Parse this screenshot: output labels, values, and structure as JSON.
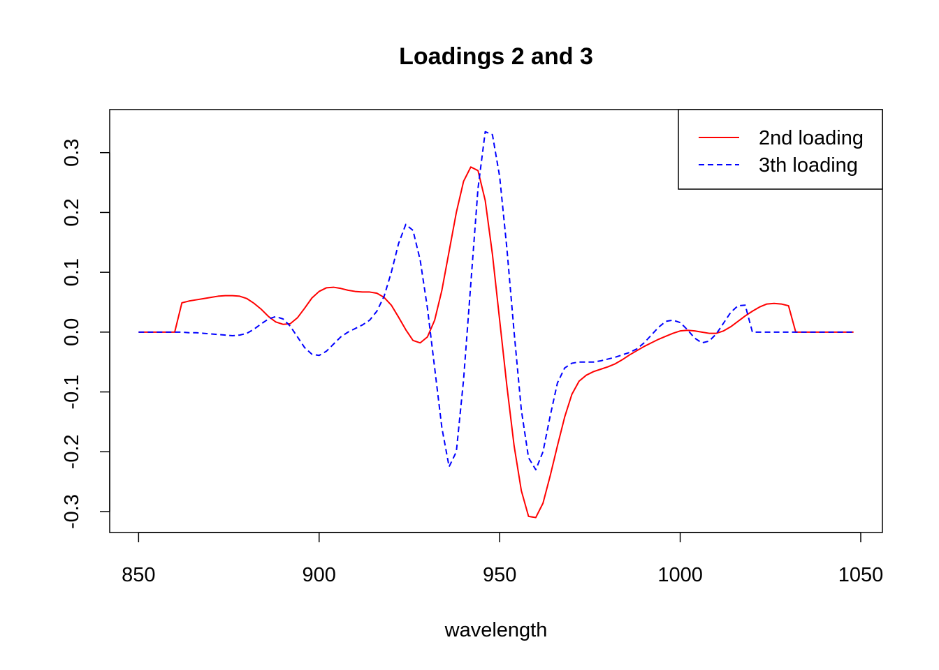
{
  "chart_data": {
    "type": "line",
    "title": "Loadings 2 and 3",
    "xlabel": "wavelength",
    "ylabel": "",
    "xlim": [
      842,
      1056
    ],
    "ylim": [
      -0.335,
      0.372
    ],
    "x_ticks": [
      850,
      900,
      950,
      1000,
      1050
    ],
    "y_ticks": [
      -0.3,
      -0.2,
      -0.1,
      0.0,
      0.1,
      0.2,
      0.3
    ],
    "x_tick_labels": [
      "850",
      "900",
      "950",
      "1000",
      "1050"
    ],
    "y_tick_labels": [
      "-0.3",
      "-0.2",
      "-0.1",
      "0.0",
      "0.1",
      "0.2",
      "0.3"
    ],
    "legend_position": "top-right",
    "series": [
      {
        "name": "2nd loading",
        "color": "#ff0000",
        "style": "solid",
        "x": [
          850,
          852,
          854,
          856,
          858,
          860,
          862,
          864,
          866,
          868,
          870,
          872,
          874,
          876,
          878,
          880,
          882,
          884,
          886,
          888,
          890,
          892,
          894,
          896,
          898,
          900,
          902,
          904,
          906,
          908,
          910,
          912,
          914,
          916,
          918,
          920,
          922,
          924,
          926,
          928,
          930,
          932,
          934,
          936,
          938,
          940,
          942,
          944,
          946,
          948,
          950,
          952,
          954,
          956,
          958,
          960,
          962,
          964,
          966,
          968,
          970,
          972,
          974,
          976,
          978,
          980,
          982,
          984,
          986,
          988,
          990,
          992,
          994,
          996,
          998,
          1000,
          1002,
          1004,
          1006,
          1008,
          1010,
          1012,
          1014,
          1016,
          1018,
          1020,
          1022,
          1024,
          1026,
          1028,
          1030,
          1032,
          1034,
          1036,
          1038,
          1040,
          1042,
          1044,
          1046,
          1048
        ],
        "values": [
          0.0,
          0.0,
          0.0,
          0.0,
          0.0,
          0.0,
          0.049,
          0.052,
          0.054,
          0.056,
          0.058,
          0.06,
          0.061,
          0.061,
          0.06,
          0.056,
          0.048,
          0.038,
          0.026,
          0.017,
          0.013,
          0.014,
          0.024,
          0.04,
          0.057,
          0.068,
          0.074,
          0.075,
          0.073,
          0.07,
          0.068,
          0.067,
          0.067,
          0.065,
          0.058,
          0.045,
          0.025,
          0.004,
          -0.014,
          -0.018,
          -0.008,
          0.02,
          0.07,
          0.135,
          0.2,
          0.252,
          0.276,
          0.27,
          0.22,
          0.13,
          0.02,
          -0.09,
          -0.19,
          -0.265,
          -0.308,
          -0.31,
          -0.286,
          -0.24,
          -0.19,
          -0.142,
          -0.104,
          -0.082,
          -0.072,
          -0.066,
          -0.062,
          -0.058,
          -0.053,
          -0.046,
          -0.038,
          -0.031,
          -0.024,
          -0.018,
          -0.012,
          -0.007,
          -0.002,
          0.002,
          0.003,
          0.002,
          0.0,
          -0.002,
          -0.002,
          0.002,
          0.009,
          0.018,
          0.027,
          0.035,
          0.042,
          0.047,
          0.048,
          0.047,
          0.044,
          0.0,
          0.0,
          0.0,
          0.0,
          0.0,
          0.0,
          0.0,
          0.0,
          0.0
        ]
      },
      {
        "name": "3th loading",
        "color": "#0000ff",
        "style": "dashed",
        "x": [
          850,
          852,
          854,
          856,
          858,
          860,
          862,
          864,
          866,
          868,
          870,
          872,
          874,
          876,
          878,
          880,
          882,
          884,
          886,
          888,
          890,
          892,
          894,
          896,
          898,
          900,
          902,
          904,
          906,
          908,
          910,
          912,
          914,
          916,
          918,
          920,
          922,
          924,
          926,
          928,
          930,
          932,
          934,
          936,
          938,
          940,
          942,
          944,
          946,
          948,
          950,
          952,
          954,
          956,
          958,
          960,
          962,
          964,
          966,
          968,
          970,
          972,
          974,
          976,
          978,
          980,
          982,
          984,
          986,
          988,
          990,
          992,
          994,
          996,
          998,
          1000,
          1002,
          1004,
          1006,
          1008,
          1010,
          1012,
          1014,
          1016,
          1018,
          1020,
          1022,
          1024,
          1026,
          1028,
          1030,
          1032,
          1034,
          1036,
          1038,
          1040,
          1042,
          1044,
          1046,
          1048
        ],
        "values": [
          0.0,
          0.0,
          0.0,
          0.0,
          0.0,
          0.0,
          0.0,
          -0.001,
          -0.001,
          -0.002,
          -0.003,
          -0.004,
          -0.005,
          -0.006,
          -0.005,
          -0.002,
          0.005,
          0.014,
          0.022,
          0.026,
          0.022,
          0.01,
          -0.008,
          -0.026,
          -0.037,
          -0.039,
          -0.032,
          -0.02,
          -0.008,
          0.0,
          0.006,
          0.012,
          0.02,
          0.035,
          0.06,
          0.1,
          0.148,
          0.18,
          0.17,
          0.12,
          0.04,
          -0.06,
          -0.16,
          -0.225,
          -0.2,
          -0.08,
          0.08,
          0.24,
          0.335,
          0.33,
          0.26,
          0.14,
          0.0,
          -0.13,
          -0.21,
          -0.23,
          -0.2,
          -0.14,
          -0.085,
          -0.06,
          -0.052,
          -0.05,
          -0.05,
          -0.05,
          -0.048,
          -0.045,
          -0.042,
          -0.038,
          -0.034,
          -0.028,
          -0.018,
          -0.005,
          0.008,
          0.018,
          0.02,
          0.016,
          0.004,
          -0.01,
          -0.018,
          -0.015,
          -0.003,
          0.015,
          0.033,
          0.044,
          0.045,
          0.0,
          0.0,
          0.0,
          0.0,
          0.0,
          0.0,
          0.0,
          0.0,
          0.0,
          0.0,
          0.0,
          0.0,
          0.0,
          0.0,
          0.0
        ]
      }
    ]
  }
}
